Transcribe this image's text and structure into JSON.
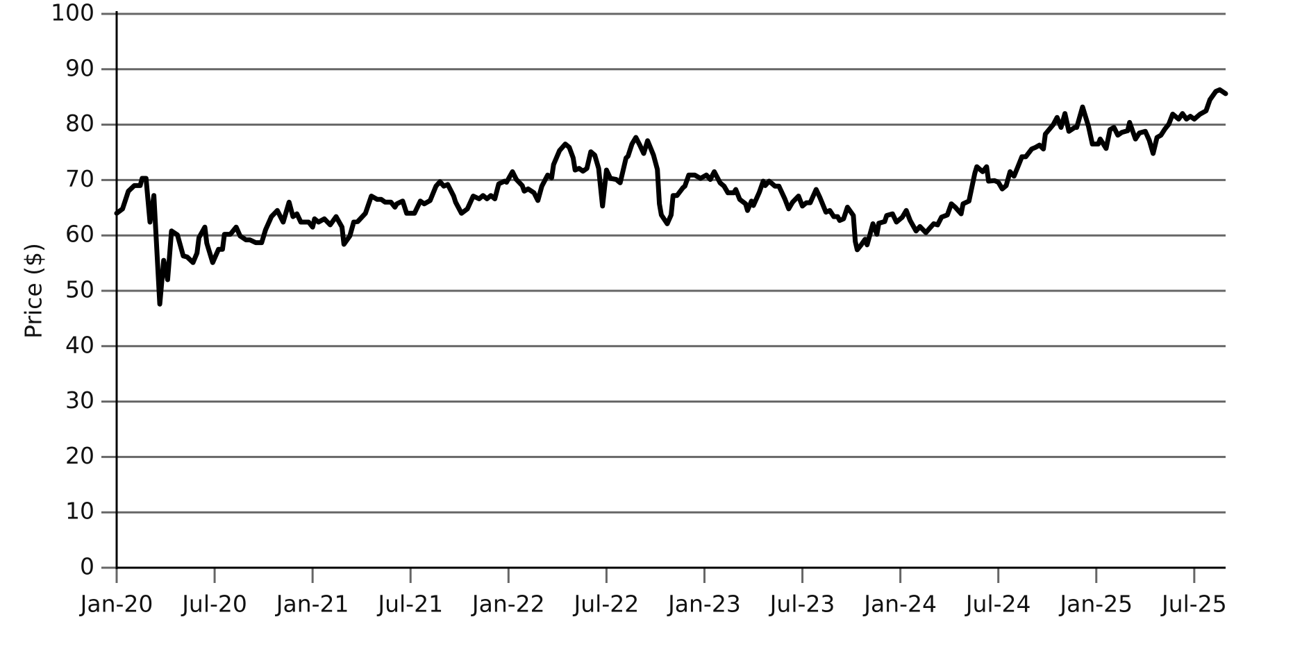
{
  "chart_data": {
    "type": "line",
    "y_label": "Price ($)",
    "x": [
      2020.0,
      2020.03,
      2020.06,
      2020.09,
      2020.12,
      2020.13,
      2020.15,
      2020.17,
      2020.19,
      2020.22,
      2020.24,
      2020.26,
      2020.28,
      2020.31,
      2020.34,
      2020.36,
      2020.39,
      2020.41,
      2020.42,
      2020.45,
      2020.46,
      2020.49,
      2020.52,
      2020.54,
      2020.55,
      2020.58,
      2020.61,
      2020.63,
      2020.66,
      2020.68,
      2020.71,
      2020.74,
      2020.76,
      2020.79,
      2020.82,
      2020.85,
      2020.88,
      2020.9,
      2020.92,
      2020.94,
      2020.98,
      2021.0,
      2021.01,
      2021.03,
      2021.06,
      2021.09,
      2021.12,
      2021.15,
      2021.16,
      2021.19,
      2021.21,
      2021.23,
      2021.27,
      2021.3,
      2021.33,
      2021.35,
      2021.37,
      2021.4,
      2021.42,
      2021.43,
      2021.46,
      2021.48,
      2021.52,
      2021.55,
      2021.57,
      2021.6,
      2021.63,
      2021.65,
      2021.67,
      2021.69,
      2021.72,
      2021.73,
      2021.76,
      2021.79,
      2021.82,
      2021.85,
      2021.87,
      2021.89,
      2021.91,
      2021.93,
      2021.95,
      2021.98,
      2021.99,
      2022.02,
      2022.04,
      2022.07,
      2022.08,
      2022.1,
      2022.13,
      2022.15,
      2022.17,
      2022.2,
      2022.22,
      2022.23,
      2022.26,
      2022.29,
      2022.31,
      2022.33,
      2022.34,
      2022.36,
      2022.38,
      2022.4,
      2022.42,
      2022.44,
      2022.46,
      2022.48,
      2022.5,
      2022.52,
      2022.55,
      2022.57,
      2022.6,
      2022.61,
      2022.63,
      2022.65,
      2022.67,
      2022.69,
      2022.71,
      2022.74,
      2022.76,
      2022.77,
      2022.78,
      2022.81,
      2022.83,
      2022.84,
      2022.86,
      2022.89,
      2022.9,
      2022.92,
      2022.95,
      2022.98,
      2023.01,
      2023.03,
      2023.05,
      2023.08,
      2023.1,
      2023.12,
      2023.15,
      2023.16,
      2023.18,
      2023.21,
      2023.22,
      2023.24,
      2023.25,
      2023.28,
      2023.3,
      2023.31,
      2023.33,
      2023.36,
      2023.38,
      2023.41,
      2023.43,
      2023.45,
      2023.48,
      2023.5,
      2023.52,
      2023.54,
      2023.57,
      2023.59,
      2023.62,
      2023.64,
      2023.66,
      2023.68,
      2023.69,
      2023.71,
      2023.73,
      2023.76,
      2023.77,
      2023.78,
      2023.8,
      2023.82,
      2023.83,
      2023.86,
      2023.88,
      2023.89,
      2023.92,
      2023.93,
      2023.96,
      2023.98,
      2024.01,
      2024.03,
      2024.05,
      2024.08,
      2024.1,
      2024.13,
      2024.15,
      2024.17,
      2024.19,
      2024.21,
      2024.24,
      2024.26,
      2024.28,
      2024.31,
      2024.32,
      2024.35,
      2024.38,
      2024.39,
      2024.42,
      2024.44,
      2024.45,
      2024.48,
      2024.5,
      2024.52,
      2024.54,
      2024.56,
      2024.58,
      2024.6,
      2024.62,
      2024.64,
      2024.67,
      2024.69,
      2024.71,
      2024.73,
      2024.74,
      2024.78,
      2024.8,
      2024.82,
      2024.84,
      2024.86,
      2024.89,
      2024.9,
      2024.93,
      2024.96,
      2024.98,
      2025.01,
      2025.02,
      2025.05,
      2025.07,
      2025.09,
      2025.11,
      2025.13,
      2025.16,
      2025.17,
      2025.2,
      2025.22,
      2025.25,
      2025.27,
      2025.29,
      2025.31,
      2025.33,
      2025.35,
      2025.37,
      2025.39,
      2025.42,
      2025.44,
      2025.46,
      2025.48,
      2025.5,
      2025.53,
      2025.56,
      2025.58,
      2025.61,
      2025.63,
      2025.66
    ],
    "values": [
      64.0,
      64.8,
      68,
      69,
      69,
      70.3,
      70.3,
      62.4,
      67.2,
      47.6,
      55.5,
      52,
      60.8,
      60.1,
      56.3,
      56.1,
      55.1,
      56.8,
      59.6,
      61.5,
      58.6,
      55.1,
      57.5,
      57.5,
      60.2,
      60.2,
      61.5,
      59.9,
      59.2,
      59.2,
      58.7,
      58.7,
      61,
      63.4,
      64.5,
      62.4,
      66,
      63.4,
      63.9,
      62.4,
      62.4,
      61.5,
      63,
      62.4,
      63,
      61.9,
      63.4,
      61.5,
      58.4,
      59.9,
      62.4,
      62.5,
      64,
      67.1,
      66.5,
      66.5,
      66,
      66,
      65.1,
      65.7,
      66.2,
      64,
      64,
      66.2,
      65.7,
      66.3,
      68.9,
      69.7,
      68.9,
      69.2,
      67.1,
      66,
      64,
      64.8,
      67.1,
      66.6,
      67.2,
      66.6,
      67.2,
      66.6,
      69.3,
      69.8,
      69.6,
      71.5,
      70.1,
      69,
      68,
      68.4,
      67.7,
      66.3,
      68.9,
      70.9,
      70.4,
      72.8,
      75.3,
      76.5,
      75.9,
      74,
      71.8,
      72.1,
      71.6,
      72.1,
      75.1,
      74.5,
      72.1,
      65.3,
      71.8,
      70.3,
      70.1,
      69.5,
      74,
      74.3,
      76.5,
      77.7,
      76.3,
      74.8,
      77.1,
      74.5,
      71.9,
      65.7,
      63.7,
      62.1,
      63.7,
      67.2,
      67.2,
      68.6,
      68.9,
      70.9,
      70.9,
      70.3,
      70.9,
      70.1,
      71.5,
      69.5,
      68.9,
      67.7,
      67.7,
      68.3,
      66.5,
      65.7,
      64.5,
      66.2,
      65.4,
      67.8,
      69.8,
      69,
      69.8,
      68.9,
      68.9,
      66.6,
      64.8,
      66,
      67.1,
      65.3,
      65.9,
      65.9,
      68.3,
      66.8,
      64.2,
      64.5,
      63.4,
      63.4,
      62.7,
      63,
      65.1,
      63.6,
      58.9,
      57.4,
      58.3,
      59.3,
      58.3,
      62.1,
      60.2,
      62.2,
      62.5,
      63.6,
      63.9,
      62.4,
      63.3,
      64.5,
      62.7,
      60.8,
      61.6,
      60.5,
      61.3,
      62.1,
      61.9,
      63.3,
      63.7,
      65.7,
      65.1,
      63.9,
      65.7,
      66.2,
      71.2,
      72.4,
      71.5,
      72.4,
      69.8,
      69.9,
      69.6,
      68.4,
      69,
      71.5,
      70.7,
      72.4,
      74.2,
      74.2,
      75.6,
      75.9,
      76.3,
      75.6,
      78.3,
      80,
      81.3,
      79.5,
      82,
      78.8,
      79.5,
      79.5,
      83.2,
      79.7,
      76.5,
      76.5,
      77.4,
      75.7,
      79.1,
      79.5,
      78.1,
      78.6,
      78.9,
      80.4,
      77.4,
      78.5,
      78.8,
      77.2,
      74.8,
      77.7,
      78.1,
      79.2,
      80.1,
      81.9,
      81,
      82,
      81,
      81.5,
      81,
      81.9,
      82.5,
      84.5,
      86,
      86.3,
      85.6
    ],
    "color": "#000000",
    "xlim": [
      2020,
      2025.66
    ],
    "xticks": [
      {
        "value": 2020,
        "label": "Jan-20"
      },
      {
        "value": 2020.5,
        "label": "Jul-20"
      },
      {
        "value": 2021,
        "label": "Jan-21"
      },
      {
        "value": 2021.5,
        "label": "Jul-21"
      },
      {
        "value": 2022,
        "label": "Jan-22"
      },
      {
        "value": 2022.5,
        "label": "Jul-22"
      },
      {
        "value": 2023,
        "label": "Jan-23"
      },
      {
        "value": 2023.5,
        "label": "Jul-23"
      },
      {
        "value": 2024,
        "label": "Jan-24"
      },
      {
        "value": 2024.5,
        "label": "Jul-24"
      },
      {
        "value": 2025,
        "label": "Jan-25"
      },
      {
        "value": 2025.5,
        "label": "Jul-25"
      }
    ],
    "ylim": [
      0,
      100
    ],
    "yticks": [
      0,
      10,
      20,
      30,
      40,
      50,
      60,
      70,
      80,
      90,
      100
    ],
    "grid": true
  }
}
